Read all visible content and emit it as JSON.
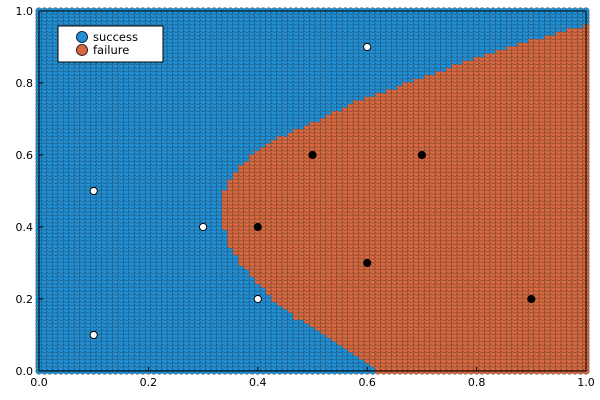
{
  "chart_data": {
    "type": "scatter",
    "title": "",
    "xlabel": "",
    "ylabel": "",
    "xlim": [
      0,
      1
    ],
    "ylim": [
      0,
      1
    ],
    "xticks": [
      0.0,
      0.2,
      0.4,
      0.6,
      0.8,
      1.0
    ],
    "yticks": [
      0.0,
      0.2,
      0.4,
      0.6,
      0.8,
      1.0
    ],
    "xtick_labels": [
      "0.0",
      "0.2",
      "0.4",
      "0.6",
      "0.8",
      "1.0"
    ],
    "ytick_labels": [
      "0.0",
      "0.2",
      "0.4",
      "0.6",
      "0.8",
      "1.0"
    ],
    "grid": false,
    "legend_position": "top-left",
    "background_grid": {
      "resolution": 0.01,
      "description_of_regions": "dense grid of small markers covering [0,1]x[0,1], classified success/failure",
      "failure_boundary": [
        {
          "y": 0.0,
          "x": 0.62
        },
        {
          "y": 0.05,
          "x": 0.58
        },
        {
          "y": 0.1,
          "x": 0.53
        },
        {
          "y": 0.15,
          "x": 0.47
        },
        {
          "y": 0.2,
          "x": 0.43
        },
        {
          "y": 0.25,
          "x": 0.4
        },
        {
          "y": 0.3,
          "x": 0.37
        },
        {
          "y": 0.35,
          "x": 0.35
        },
        {
          "y": 0.4,
          "x": 0.34
        },
        {
          "y": 0.45,
          "x": 0.335
        },
        {
          "y": 0.5,
          "x": 0.34
        },
        {
          "y": 0.55,
          "x": 0.355
        },
        {
          "y": 0.6,
          "x": 0.39
        },
        {
          "y": 0.65,
          "x": 0.44
        },
        {
          "y": 0.7,
          "x": 0.51
        },
        {
          "y": 0.75,
          "x": 0.58
        },
        {
          "y": 0.8,
          "x": 0.67
        },
        {
          "y": 0.85,
          "x": 0.76
        },
        {
          "y": 0.9,
          "x": 0.86
        },
        {
          "y": 0.95,
          "x": 0.96
        },
        {
          "y": 0.96,
          "x": 1.0
        }
      ]
    },
    "series": [
      {
        "name": "success",
        "color": "#1f8fd6"
      },
      {
        "name": "failure",
        "color": "#d9683f"
      }
    ],
    "observed_points": {
      "success": [
        {
          "x": 0.1,
          "y": 0.1
        },
        {
          "x": 0.1,
          "y": 0.5
        },
        {
          "x": 0.3,
          "y": 0.4
        },
        {
          "x": 0.4,
          "y": 0.2
        },
        {
          "x": 0.6,
          "y": 0.9
        }
      ],
      "failure": [
        {
          "x": 0.4,
          "y": 0.4
        },
        {
          "x": 0.5,
          "y": 0.6
        },
        {
          "x": 0.6,
          "y": 0.3
        },
        {
          "x": 0.7,
          "y": 0.6
        },
        {
          "x": 0.9,
          "y": 0.2
        }
      ],
      "success_fill": "#ffffff",
      "failure_fill": "#000000"
    }
  }
}
